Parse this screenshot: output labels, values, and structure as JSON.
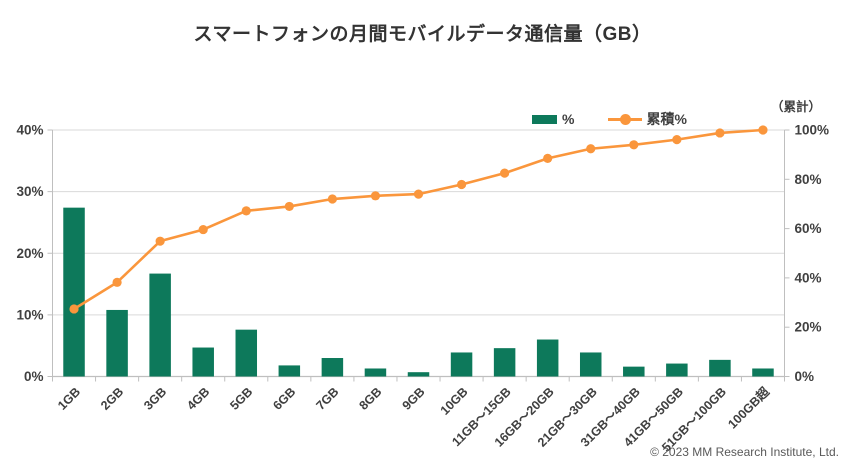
{
  "page": {
    "copyright": "© 2023 MM Research Institute, Ltd."
  },
  "colors": {
    "bar": "#0D795B",
    "line": "#FA963C",
    "grid": "#D9D9D9",
    "axis": "#BFBFBF",
    "tick_text": "#404040",
    "title_text": "#333333"
  },
  "chart_data": {
    "type": "bar",
    "subtype": "pareto-bar-with-cumulative-line",
    "title": "スマートフォンの月間モバイルデータ通信量（GB）",
    "categories": [
      "1GB",
      "2GB",
      "3GB",
      "4GB",
      "5GB",
      "6GB",
      "7GB",
      "8GB",
      "9GB",
      "10GB",
      "11GB〜15GB",
      "16GB〜20GB",
      "21GB〜30GB",
      "31GB〜40GB",
      "41GB〜50GB",
      "51GB〜100GB",
      "100GB超"
    ],
    "series": [
      {
        "name": "%",
        "type": "bar",
        "axis": "left",
        "values": [
          27.4,
          10.8,
          16.7,
          4.7,
          7.6,
          1.8,
          3.0,
          1.3,
          0.7,
          3.9,
          4.6,
          6.0,
          3.9,
          1.6,
          2.1,
          2.7,
          1.3
        ]
      },
      {
        "name": "累積%",
        "type": "line",
        "axis": "right",
        "values": [
          27.4,
          38.2,
          54.9,
          59.6,
          67.2,
          69.0,
          72.0,
          73.3,
          74.0,
          77.9,
          82.5,
          88.5,
          92.4,
          94.0,
          96.1,
          98.8,
          100.0
        ]
      }
    ],
    "left_axis": {
      "min": 0,
      "max": 40,
      "tick_step": 10,
      "tick_labels": [
        "0%",
        "10%",
        "20%",
        "30%",
        "40%"
      ]
    },
    "right_axis": {
      "min": 0,
      "max": 100,
      "tick_step": 20,
      "tick_labels": [
        "0%",
        "20%",
        "40%",
        "60%",
        "80%",
        "100%"
      ],
      "title": "（累計）"
    },
    "grid": true,
    "legend_position": "top-inside-right"
  }
}
